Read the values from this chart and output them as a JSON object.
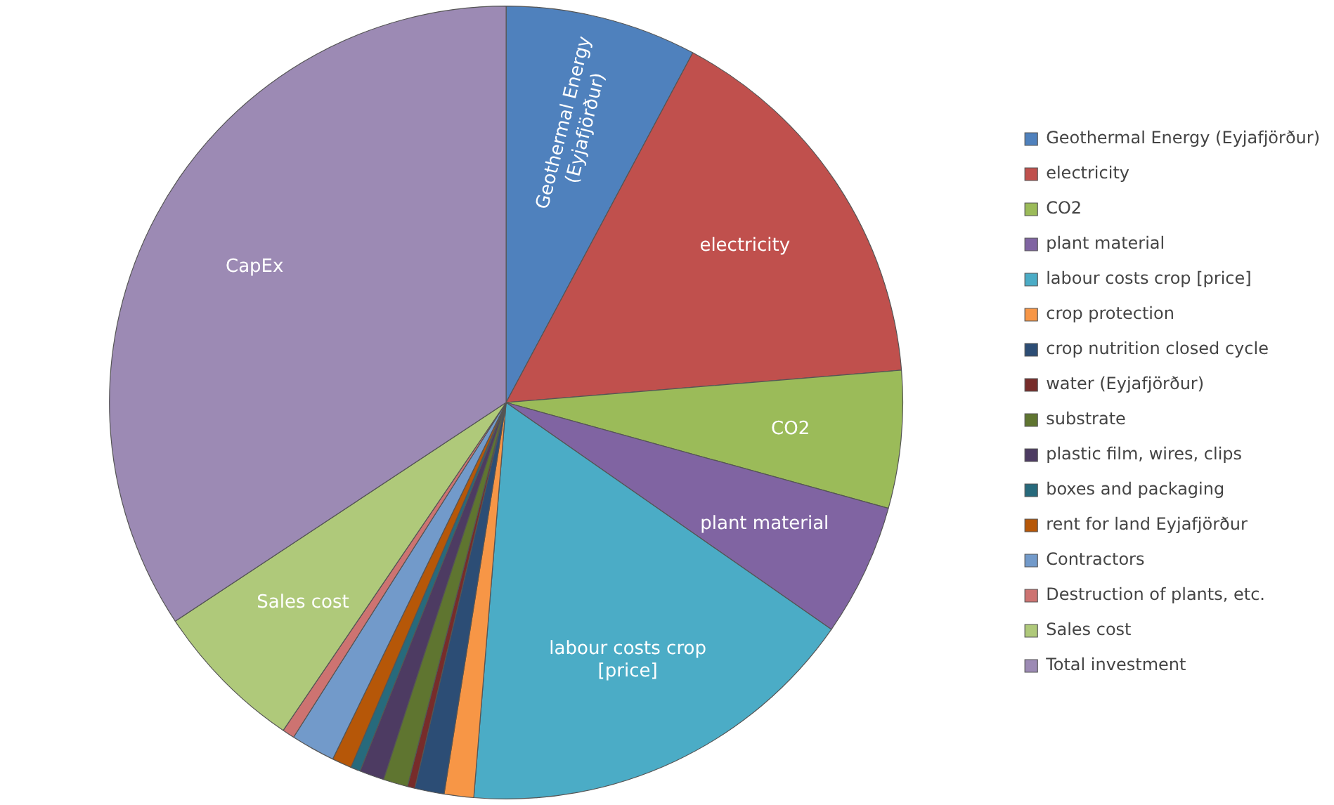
{
  "chart_data": {
    "type": "pie",
    "categories": [
      "Geothermal Energy (Eyjafjörður)",
      "electricity",
      "CO2",
      "plant material",
      "labour costs crop [price]",
      "crop protection",
      "crop nutrition closed cycle",
      "water (Eyjafjörður)",
      "substrate",
      "plastic film, wires, clips",
      "boxes and packaging",
      "rent for land Eyjafjörður",
      "Contractors",
      "Destruction of plants, etc.",
      "Sales cost",
      "Total investment"
    ],
    "values": [
      7.8,
      15.9,
      5.6,
      5.4,
      16.6,
      1.2,
      1.2,
      0.3,
      1.0,
      1.0,
      0.4,
      0.8,
      1.8,
      0.5,
      6.2,
      34.3
    ],
    "colors": [
      "#4f81bd",
      "#c0504d",
      "#9bbb59",
      "#8064a2",
      "#4bacc6",
      "#f79646",
      "#2c4d75",
      "#772c2a",
      "#5f7530",
      "#4d3b62",
      "#276a7c",
      "#b65708",
      "#729aca",
      "#cd7371",
      "#afc97a",
      "#9c8ab4"
    ],
    "value_labels": [
      "Geothermal Energy (Eyjafjörður)",
      "electricity",
      "CO2",
      "plant material",
      "labour costs crop [price]",
      null,
      null,
      null,
      null,
      null,
      null,
      null,
      null,
      null,
      "Sales cost",
      "CapEx"
    ],
    "legend": "right"
  }
}
